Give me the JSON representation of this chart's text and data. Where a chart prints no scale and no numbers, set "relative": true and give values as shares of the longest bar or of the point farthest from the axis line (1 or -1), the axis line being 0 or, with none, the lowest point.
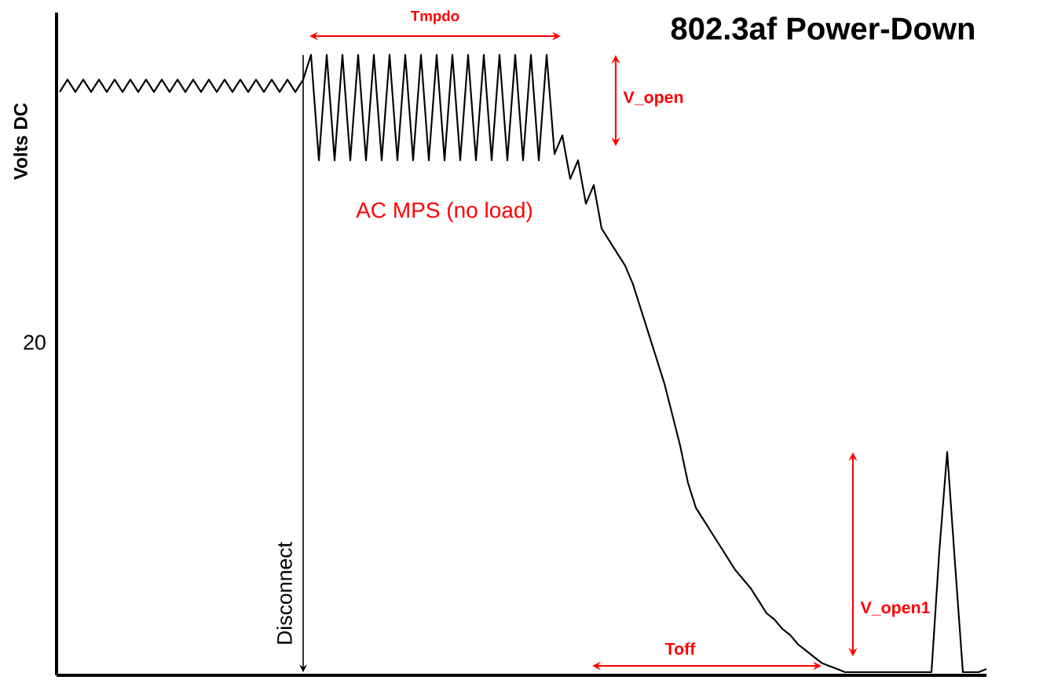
{
  "chart_data": {
    "type": "line",
    "relative": true,
    "title": "802.3af Power-Down",
    "ylabel": "Volts DC",
    "color": "#000000",
    "categories": [
      null,
      null,
      null,
      null,
      null,
      null,
      null,
      null,
      null,
      null,
      null,
      null,
      null,
      null,
      null,
      null,
      null,
      null,
      null,
      null,
      null,
      null,
      null,
      null,
      null,
      null,
      null,
      null,
      null,
      null,
      null,
      null,
      null,
      null,
      null,
      null,
      null,
      null,
      null,
      null,
      null,
      null,
      null,
      null,
      null,
      null,
      null,
      null,
      null,
      null,
      null,
      null,
      null,
      null,
      null,
      null,
      null,
      null,
      null,
      null,
      null,
      null,
      null,
      null,
      null,
      null,
      null,
      null,
      null,
      null,
      null,
      null,
      null,
      null,
      null,
      null,
      null,
      null,
      null,
      null,
      null,
      null,
      null,
      null,
      null,
      null,
      null,
      null,
      null,
      null,
      null,
      null,
      null,
      null,
      null,
      null,
      null,
      null,
      null,
      null,
      null,
      null,
      null,
      null,
      null,
      null,
      null,
      null,
      null,
      null,
      null,
      null,
      null,
      null,
      null,
      null,
      null,
      null,
      null
    ],
    "values": [
      0.94,
      0.96,
      0.94,
      0.96,
      0.94,
      0.96,
      0.94,
      0.96,
      0.94,
      0.96,
      0.94,
      0.96,
      0.94,
      0.96,
      0.94,
      0.96,
      0.94,
      0.96,
      0.94,
      0.96,
      0.94,
      0.96,
      0.94,
      0.96,
      0.94,
      0.96,
      0.94,
      0.96,
      0.94,
      0.96,
      0.94,
      0.96,
      1,
      0.83,
      1,
      0.83,
      1,
      0.83,
      1,
      0.83,
      1,
      0.83,
      1,
      0.83,
      1,
      0.83,
      1,
      0.83,
      1,
      0.83,
      1,
      0.83,
      1,
      0.83,
      1,
      0.83,
      1,
      0.83,
      1,
      0.83,
      1,
      0.83,
      1,
      0.84,
      0.87,
      0.8,
      0.83,
      0.76,
      0.79,
      0.72,
      0.7,
      0.68,
      0.66,
      0.63,
      0.59,
      0.55,
      0.51,
      0.47,
      0.42,
      0.37,
      0.31,
      0.27,
      0.25,
      0.23,
      0.21,
      0.19,
      0.17,
      0.155,
      0.14,
      0.12,
      0.1,
      0.09,
      0.075,
      0.065,
      0.05,
      0.04,
      0.03,
      0.02,
      0.015,
      0.01,
      0.005,
      0.005,
      0.005,
      0.005,
      0.005,
      0.005,
      0.005,
      0.005,
      0.005,
      0.005,
      0.005,
      0.005,
      0.2,
      0.36,
      0.18,
      0.005,
      0.005,
      0.005,
      0.01
    ],
    "annotations": [
      "Tmpdo",
      "V_open",
      "AC MPS (no load)",
      "Disconnect",
      "Toff",
      "V_open1",
      "20"
    ]
  }
}
